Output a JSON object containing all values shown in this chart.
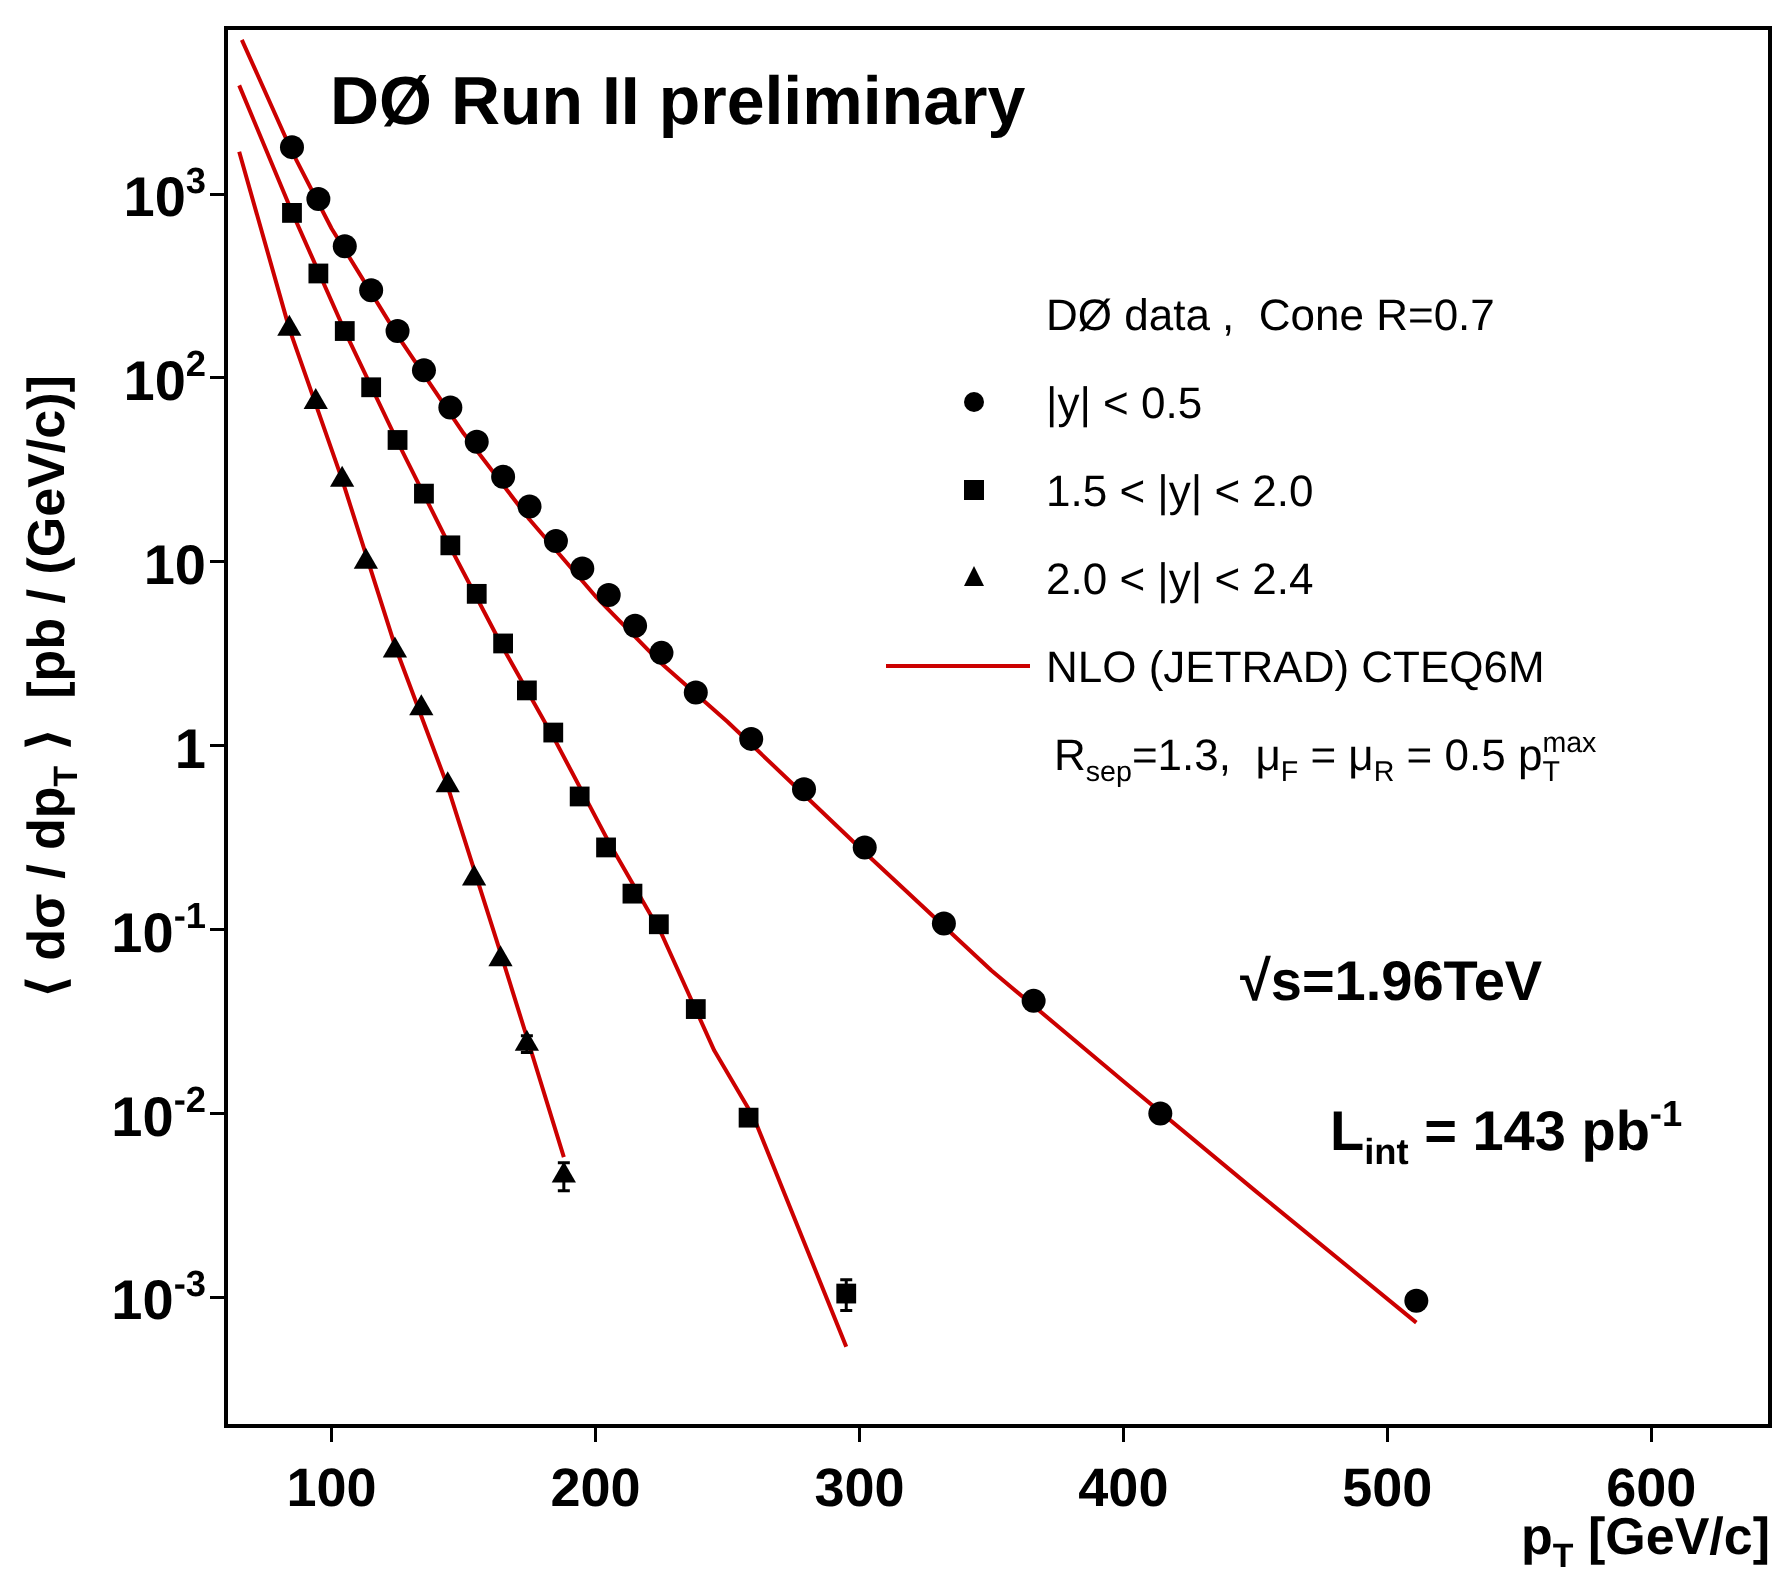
{
  "chart_data": {
    "type": "scatter",
    "title": "DØ Run II preliminary",
    "xlabel": "p$_{T}$ [GeV/c]",
    "ylabel": "⟨ dσ / dp$_{T}$ ⟩  [pb / (GeV/c)]",
    "legend_title": "DØ data ,  Cone R=0.7",
    "legend": "top right",
    "log": "y",
    "grid": false,
    "xlim": [
      60,
      645
    ],
    "xticks": [
      100,
      200,
      300,
      400,
      500,
      600
    ],
    "ylim": [
      0.0002,
      8000
    ],
    "yticks": [
      {
        "value": 0.001,
        "label": "10$^{-3}$"
      },
      {
        "value": 0.01,
        "label": "10$^{-2}$"
      },
      {
        "value": 0.1,
        "label": "10$^{-1}$"
      },
      1,
      10,
      {
        "value": 100,
        "label": "10$^{2}$"
      },
      {
        "value": 1000,
        "label": "10$^{3}$"
      }
    ],
    "annotations": [
      "R$_{sep}$=1.3,  μ$_{F}$ = μ$_{R}$ = 0.5 p$_{T}$$^{max}$",
      "√s=1.96TeV",
      "L$_{int}$ = 143 pb$^{-1}$"
    ],
    "series": [
      {
        "name": "|y| < 0.5",
        "type": "scatter",
        "marker": "circle",
        "color": "#000000",
        "x": [
          85,
          95,
          105,
          115,
          125,
          135,
          145,
          155,
          165,
          175,
          185,
          195,
          205,
          215,
          225,
          238,
          259,
          279,
          302,
          332,
          366,
          414,
          511
        ],
        "values": [
          1800,
          940,
          520,
          300,
          180,
          110,
          69,
          45,
          29,
          20,
          13,
          9.2,
          6.6,
          4.5,
          3.2,
          1.95,
          1.09,
          0.58,
          0.28,
          0.108,
          0.041,
          0.01,
          0.00096
        ],
        "errors": [
          null,
          null,
          null,
          null,
          null,
          null,
          null,
          null,
          null,
          null,
          null,
          null,
          null,
          null,
          null,
          null,
          null,
          null,
          null,
          null,
          null,
          null,
          0.0001
        ]
      },
      {
        "name": "1.5 < |y| < 2.0",
        "type": "scatter",
        "marker": "square",
        "color": "#000000",
        "x": [
          85,
          95,
          105,
          115,
          125,
          135,
          145,
          155,
          165,
          174,
          184,
          194,
          204,
          214,
          224,
          238,
          258,
          295
        ],
        "values": [
          790,
          370,
          180,
          89,
          46,
          23.5,
          12.3,
          6.7,
          3.6,
          2.0,
          1.18,
          0.53,
          0.28,
          0.157,
          0.107,
          0.037,
          0.0095,
          0.00105
        ],
        "errors": [
          null,
          null,
          null,
          null,
          null,
          null,
          null,
          null,
          null,
          null,
          null,
          null,
          null,
          null,
          null,
          null,
          null,
          0.0002
        ]
      },
      {
        "name": "2.0 < |y| < 2.4",
        "type": "scatter",
        "marker": "triangle",
        "color": "#000000",
        "x": [
          84,
          94,
          104,
          113,
          124,
          134,
          144,
          154,
          164,
          174,
          188
        ],
        "values": [
          185,
          74,
          28,
          10,
          3.3,
          1.6,
          0.61,
          0.19,
          0.069,
          0.024,
          0.0046
        ],
        "errors": [
          null,
          null,
          null,
          null,
          null,
          null,
          null,
          null,
          null,
          0.0025,
          0.0008
        ]
      },
      {
        "name": "NLO (JETRAD) CTEQ6M",
        "type": "line",
        "marker": "none",
        "color": "#cc0000",
        "x": [
          66,
          85,
          100,
          125,
          150,
          175,
          200,
          225,
          250,
          300,
          350,
          400,
          450,
          511
        ],
        "values": [
          6900,
          1700,
          650,
          170,
          50,
          17,
          6.5,
          2.8,
          1.35,
          0.28,
          0.06,
          0.015,
          0.0038,
          0.00073
        ]
      },
      {
        "type": "line",
        "marker": "none",
        "color": "#cc0000",
        "x": [
          65,
          85,
          105,
          125,
          145,
          165,
          185,
          205,
          225,
          245,
          260,
          295
        ],
        "values": [
          3900,
          800,
          180,
          45,
          12,
          3.4,
          1.05,
          0.3,
          0.095,
          0.022,
          0.0095,
          0.00054
        ]
      },
      {
        "type": "line",
        "marker": "none",
        "color": "#cc0000",
        "x": [
          65,
          84,
          104,
          124,
          144,
          164,
          174,
          188
        ],
        "values": [
          1700,
          185,
          28,
          3.5,
          0.6,
          0.075,
          0.026,
          0.0058
        ]
      }
    ]
  }
}
